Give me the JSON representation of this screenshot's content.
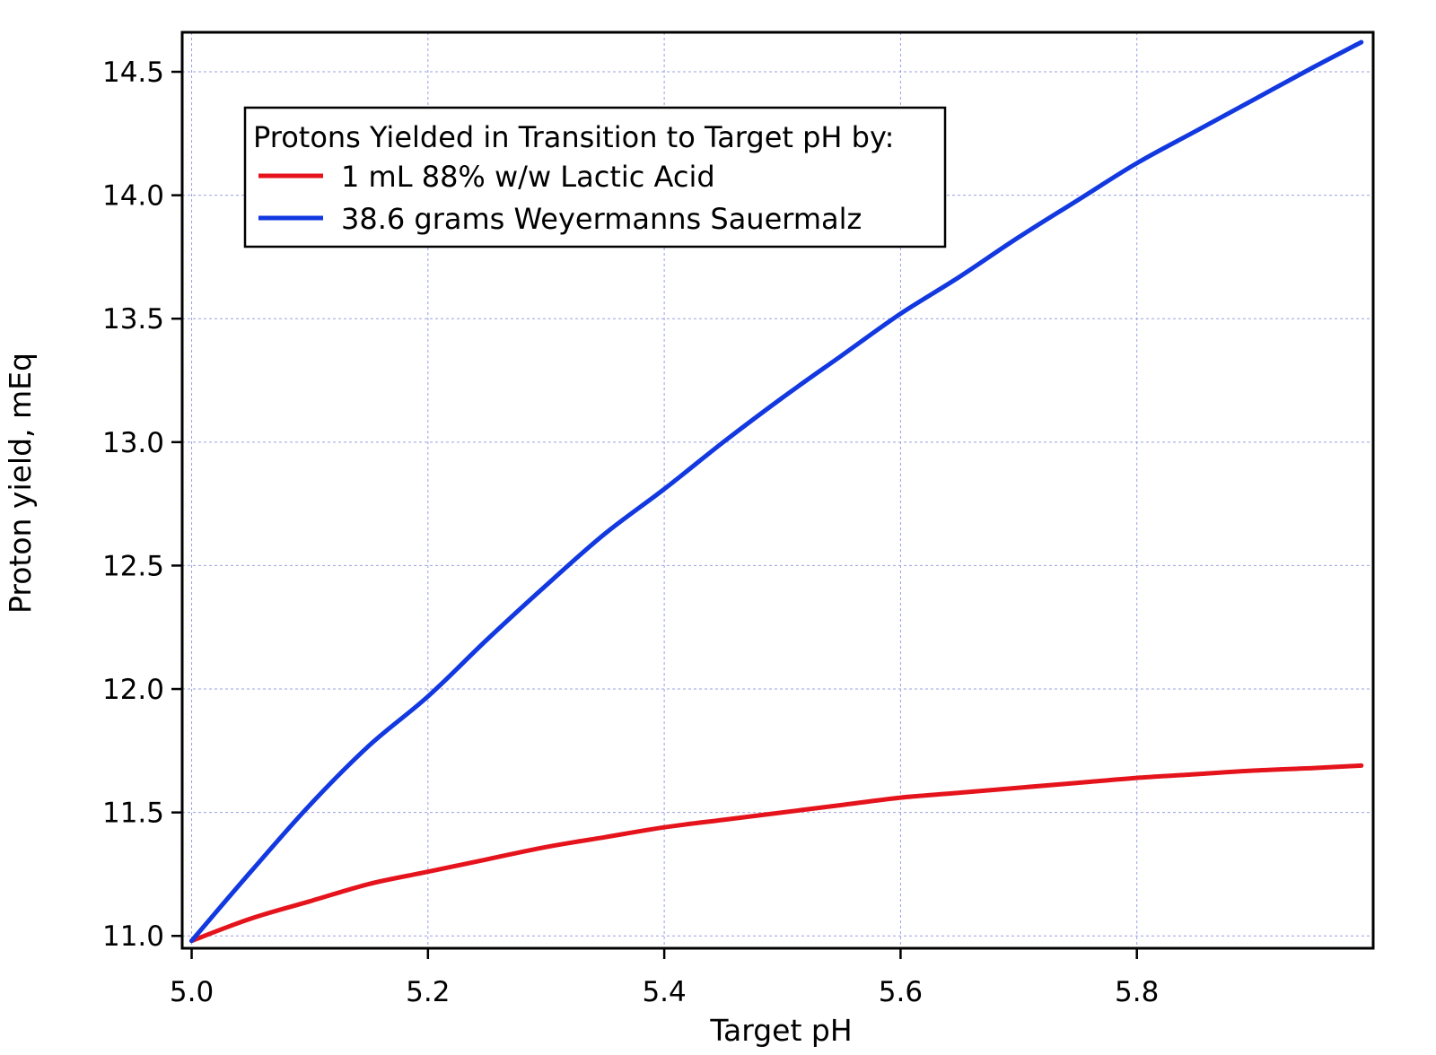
{
  "chart_data": {
    "type": "line",
    "xlabel": "Target pH",
    "ylabel": "Proton yield, mEq",
    "xlim": [
      4.992,
      6.0
    ],
    "ylim": [
      10.95,
      14.66
    ],
    "x_ticks": [
      5.0,
      5.2,
      5.4,
      5.6,
      5.8
    ],
    "x_tick_labels": [
      "5.0",
      "5.2",
      "5.4",
      "5.6",
      "5.8"
    ],
    "y_ticks": [
      11.0,
      11.5,
      12.0,
      12.5,
      13.0,
      13.5,
      14.0,
      14.5
    ],
    "y_tick_labels": [
      "11.0",
      "11.5",
      "12.0",
      "12.5",
      "13.0",
      "13.5",
      "14.0",
      "14.5"
    ],
    "grid": true,
    "legend": {
      "title": "Protons Yielded in Transition to Target pH by:",
      "placement": "top-left"
    },
    "x": [
      5.0,
      5.05,
      5.1,
      5.15,
      5.2,
      5.25,
      5.3,
      5.35,
      5.4,
      5.45,
      5.5,
      5.55,
      5.6,
      5.65,
      5.7,
      5.75,
      5.8,
      5.85,
      5.9,
      5.95,
      5.99
    ],
    "series": [
      {
        "name": "1 mL 88% w/w Lactic Acid",
        "color": "#e5131b",
        "values": [
          10.98,
          11.07,
          11.14,
          11.21,
          11.26,
          11.31,
          11.36,
          11.4,
          11.44,
          11.47,
          11.5,
          11.53,
          11.56,
          11.58,
          11.6,
          11.62,
          11.64,
          11.655,
          11.67,
          11.68,
          11.69
        ]
      },
      {
        "name": "38.6 grams Weyermanns Sauermalz",
        "color": "#1238e0",
        "values": [
          10.98,
          11.26,
          11.53,
          11.77,
          11.97,
          12.2,
          12.42,
          12.63,
          12.81,
          13.0,
          13.18,
          13.35,
          13.52,
          13.67,
          13.83,
          13.98,
          14.13,
          14.26,
          14.39,
          14.52,
          14.62
        ]
      }
    ]
  }
}
